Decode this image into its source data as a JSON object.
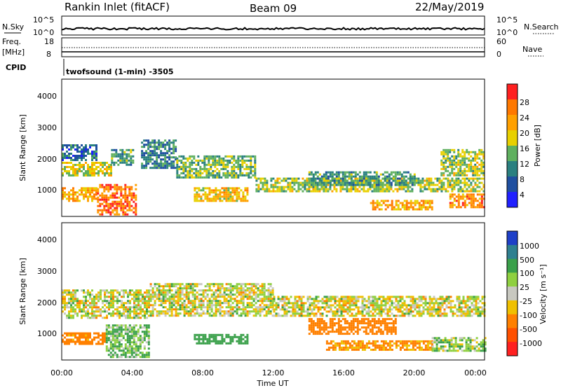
{
  "header": {
    "title": "Rankin Inlet (fitACF)",
    "beam": "Beam 09",
    "date": "22/May/2019"
  },
  "strip_nsky": {
    "label": "N.Sky",
    "left_ticks": [
      "10^5",
      "10^0"
    ],
    "right_ticks": [
      "10^5",
      "10^0"
    ],
    "right_label": "N.Search"
  },
  "strip_freq": {
    "label_top": "Freq.",
    "label_unit": "[MHz]",
    "left_ticks": [
      "18",
      "8"
    ],
    "right_ticks": [
      "60",
      "0"
    ],
    "right_label": "Nave"
  },
  "cpid": {
    "label": "CPID",
    "text": "twofsound (1-min) -3505"
  },
  "axes": {
    "ylabel": "Slant Range [km]",
    "xlabel": "Time UT",
    "yticks": [
      "4000",
      "3000",
      "2000",
      "1000"
    ],
    "xticks": [
      "00:00",
      "04:00",
      "08:00",
      "12:00",
      "16:00",
      "20:00",
      "00:00"
    ]
  },
  "power_colorbar": {
    "label": "Power [dB]",
    "ticks": [
      "28",
      "24",
      "20",
      "16",
      "12",
      "8",
      "4"
    ],
    "colors": [
      "#ff2020",
      "#ff7800",
      "#ffa000",
      "#e8d000",
      "#5fb05f",
      "#2a8080",
      "#1f4fa0",
      "#2020ff"
    ]
  },
  "velocity_colorbar": {
    "label": "Velocity [m s⁻¹]",
    "ticks": [
      "1000",
      "500",
      "100",
      "25",
      "-25",
      "-100",
      "-500",
      "-1000"
    ],
    "colors": [
      "#1f40c8",
      "#2f8090",
      "#3aa04a",
      "#8fd040",
      "#c8c8c0",
      "#f0c000",
      "#ff8000",
      "#ff5000",
      "#ff2020"
    ]
  },
  "chart_data": [
    {
      "type": "heatmap",
      "title": "Power",
      "xlabel": "Time UT",
      "ylabel": "Slant Range [km]",
      "xlim": [
        0,
        24
      ],
      "ylim": [
        180,
        4500
      ],
      "colorbar": {
        "label": "Power [dB]",
        "range": [
          0,
          32
        ]
      },
      "bands": [
        {
          "t0": 0.0,
          "t1": 2.8,
          "r0": 1450,
          "r1": 1900,
          "value": 18
        },
        {
          "t0": 0.0,
          "t1": 2.0,
          "r0": 1950,
          "r1": 2450,
          "value": 8
        },
        {
          "t0": 0.0,
          "t1": 2.0,
          "r0": 700,
          "r1": 1100,
          "value": 22
        },
        {
          "t0": 2.0,
          "t1": 4.2,
          "r0": 250,
          "r1": 1200,
          "value": 26
        },
        {
          "t0": 2.8,
          "t1": 4.0,
          "r0": 1800,
          "r1": 2300,
          "value": 12
        },
        {
          "t0": 4.5,
          "t1": 6.5,
          "r0": 1700,
          "r1": 2600,
          "value": 10
        },
        {
          "t0": 6.5,
          "t1": 11.0,
          "r0": 1400,
          "r1": 2100,
          "value": 14
        },
        {
          "t0": 7.5,
          "t1": 10.5,
          "r0": 700,
          "r1": 1100,
          "value": 20
        },
        {
          "t0": 11.0,
          "t1": 24.0,
          "r0": 1000,
          "r1": 1400,
          "value": 16
        },
        {
          "t0": 14.0,
          "t1": 20.0,
          "r0": 1200,
          "r1": 1600,
          "value": 12
        },
        {
          "t0": 17.5,
          "t1": 21.0,
          "r0": 400,
          "r1": 700,
          "value": 22
        },
        {
          "t0": 21.5,
          "t1": 24.0,
          "r0": 1500,
          "r1": 2300,
          "value": 16
        },
        {
          "t0": 22.0,
          "t1": 24.0,
          "r0": 500,
          "r1": 900,
          "value": 24
        }
      ]
    },
    {
      "type": "heatmap",
      "title": "Velocity",
      "xlabel": "Time UT",
      "ylabel": "Slant Range [km]",
      "xlim": [
        0,
        24
      ],
      "ylim": [
        180,
        4500
      ],
      "colorbar": {
        "label": "Velocity [m s⁻¹]",
        "range": [
          -1000,
          1000
        ]
      },
      "bands": [
        {
          "t0": 0.0,
          "t1": 5.0,
          "r0": 1500,
          "r1": 2400,
          "value": 0
        },
        {
          "t0": 5.0,
          "t1": 12.0,
          "r0": 1600,
          "r1": 2600,
          "value": 0
        },
        {
          "t0": 12.0,
          "t1": 24.0,
          "r0": 1600,
          "r1": 2200,
          "value": 0
        },
        {
          "t0": 0.0,
          "t1": 2.5,
          "r0": 700,
          "r1": 1050,
          "value": -200
        },
        {
          "t0": 2.5,
          "t1": 5.0,
          "r0": 250,
          "r1": 1300,
          "value": 100
        },
        {
          "t0": 7.5,
          "t1": 10.5,
          "r0": 700,
          "r1": 1000,
          "value": 300
        },
        {
          "t0": 14.0,
          "t1": 19.0,
          "r0": 1000,
          "r1": 1500,
          "value": -300
        },
        {
          "t0": 15.0,
          "t1": 21.0,
          "r0": 500,
          "r1": 800,
          "value": -150
        },
        {
          "t0": 21.0,
          "t1": 24.0,
          "r0": 500,
          "r1": 900,
          "value": 60
        }
      ]
    }
  ]
}
